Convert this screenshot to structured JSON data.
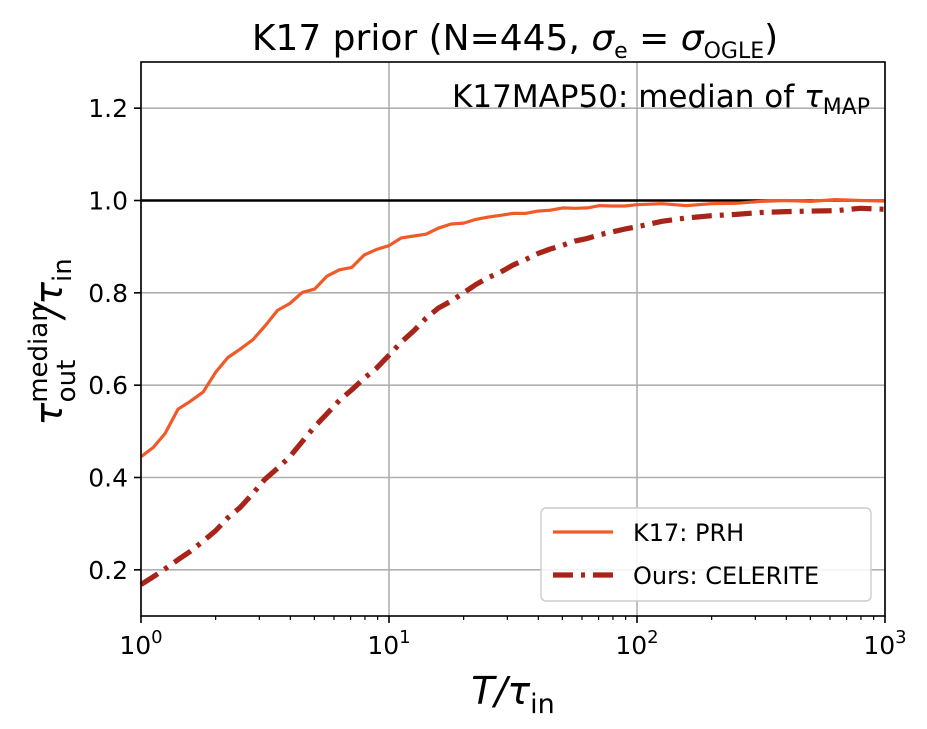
{
  "chart_data": {
    "type": "line",
    "title": {
      "prefix": "K17 prior (N=445, ",
      "sigma": "σ",
      "sigma_sub": "e",
      "equals": " = ",
      "sigma2": "σ",
      "sigma2_sub": "OGLE",
      "suffix": ")"
    },
    "annotation": {
      "text": "K17MAP50: median of ",
      "tau": "τ",
      "tau_sub": "MAP"
    },
    "xlabel": {
      "main": "T/τ",
      "sub": "in"
    },
    "ylabel": {
      "tau": "τ",
      "sup": "median",
      "sub": "out",
      "slash_tau": "/τ",
      "sub2": "in"
    },
    "xscale": "log",
    "xlim": [
      1,
      1000
    ],
    "ylim": [
      0.1,
      1.3
    ],
    "grid": true,
    "reference_line": 1.0,
    "x_ticks": [
      {
        "value": 1,
        "base": "10",
        "exp": "0"
      },
      {
        "value": 10,
        "base": "10",
        "exp": "1"
      },
      {
        "value": 100,
        "base": "10",
        "exp": "2"
      },
      {
        "value": 1000,
        "base": "10",
        "exp": "3"
      }
    ],
    "y_ticks": [
      "0.2",
      "0.4",
      "0.6",
      "0.8",
      "1.0",
      "1.2"
    ],
    "legend_position": "lower-right",
    "series": [
      {
        "name": "K17: PRH",
        "color": "#f05a28",
        "style": "solid",
        "points": [
          [
            1.0,
            0.445
          ],
          [
            1.12,
            0.465
          ],
          [
            1.25,
            0.495
          ],
          [
            1.41,
            0.548
          ],
          [
            1.58,
            0.565
          ],
          [
            1.78,
            0.585
          ],
          [
            2.0,
            0.628
          ],
          [
            2.24,
            0.66
          ],
          [
            2.51,
            0.678
          ],
          [
            2.82,
            0.698
          ],
          [
            3.16,
            0.728
          ],
          [
            3.55,
            0.762
          ],
          [
            3.98,
            0.777
          ],
          [
            4.47,
            0.801
          ],
          [
            5.01,
            0.808
          ],
          [
            5.62,
            0.836
          ],
          [
            6.31,
            0.85
          ],
          [
            7.08,
            0.855
          ],
          [
            7.94,
            0.882
          ],
          [
            8.91,
            0.894
          ],
          [
            10.0,
            0.902
          ],
          [
            11.2,
            0.919
          ],
          [
            12.6,
            0.923
          ],
          [
            14.1,
            0.927
          ],
          [
            15.8,
            0.94
          ],
          [
            17.8,
            0.949
          ],
          [
            20.0,
            0.951
          ],
          [
            22.4,
            0.959
          ],
          [
            25.1,
            0.964
          ],
          [
            28.2,
            0.968
          ],
          [
            31.6,
            0.972
          ],
          [
            35.5,
            0.972
          ],
          [
            39.8,
            0.977
          ],
          [
            44.7,
            0.979
          ],
          [
            50.1,
            0.984
          ],
          [
            56.2,
            0.983
          ],
          [
            63.1,
            0.984
          ],
          [
            70.8,
            0.989
          ],
          [
            79.4,
            0.988
          ],
          [
            89.1,
            0.988
          ],
          [
            100,
            0.991
          ],
          [
            126,
            0.993
          ],
          [
            158,
            0.989
          ],
          [
            200,
            0.993
          ],
          [
            251,
            0.994
          ],
          [
            316,
            0.998
          ],
          [
            398,
            1.0
          ],
          [
            501,
            0.998
          ],
          [
            631,
            1.002
          ],
          [
            794,
            1.0
          ],
          [
            1000,
            0.999
          ]
        ]
      },
      {
        "name": "Ours: CELERITE",
        "color": "#a82318",
        "style": "dashdot",
        "points": [
          [
            1.0,
            0.168
          ],
          [
            1.12,
            0.185
          ],
          [
            1.25,
            0.202
          ],
          [
            1.41,
            0.222
          ],
          [
            1.58,
            0.24
          ],
          [
            1.78,
            0.262
          ],
          [
            2.0,
            0.285
          ],
          [
            2.24,
            0.313
          ],
          [
            2.51,
            0.335
          ],
          [
            2.82,
            0.365
          ],
          [
            3.16,
            0.396
          ],
          [
            3.55,
            0.42
          ],
          [
            3.98,
            0.445
          ],
          [
            4.47,
            0.478
          ],
          [
            5.01,
            0.51
          ],
          [
            5.62,
            0.538
          ],
          [
            6.31,
            0.567
          ],
          [
            7.08,
            0.59
          ],
          [
            7.94,
            0.615
          ],
          [
            8.91,
            0.637
          ],
          [
            10.0,
            0.665
          ],
          [
            11.2,
            0.693
          ],
          [
            12.6,
            0.718
          ],
          [
            14.1,
            0.745
          ],
          [
            15.8,
            0.767
          ],
          [
            17.8,
            0.782
          ],
          [
            20.0,
            0.8
          ],
          [
            22.4,
            0.818
          ],
          [
            25.1,
            0.833
          ],
          [
            28.2,
            0.845
          ],
          [
            31.6,
            0.86
          ],
          [
            35.5,
            0.872
          ],
          [
            39.8,
            0.885
          ],
          [
            44.7,
            0.895
          ],
          [
            50.1,
            0.903
          ],
          [
            56.2,
            0.912
          ],
          [
            63.1,
            0.918
          ],
          [
            70.8,
            0.926
          ],
          [
            79.4,
            0.932
          ],
          [
            89.1,
            0.938
          ],
          [
            100,
            0.943
          ],
          [
            126,
            0.955
          ],
          [
            158,
            0.962
          ],
          [
            200,
            0.967
          ],
          [
            251,
            0.97
          ],
          [
            316,
            0.974
          ],
          [
            398,
            0.976
          ],
          [
            501,
            0.977
          ],
          [
            631,
            0.978
          ],
          [
            794,
            0.983
          ],
          [
            1000,
            0.981
          ]
        ]
      }
    ]
  }
}
